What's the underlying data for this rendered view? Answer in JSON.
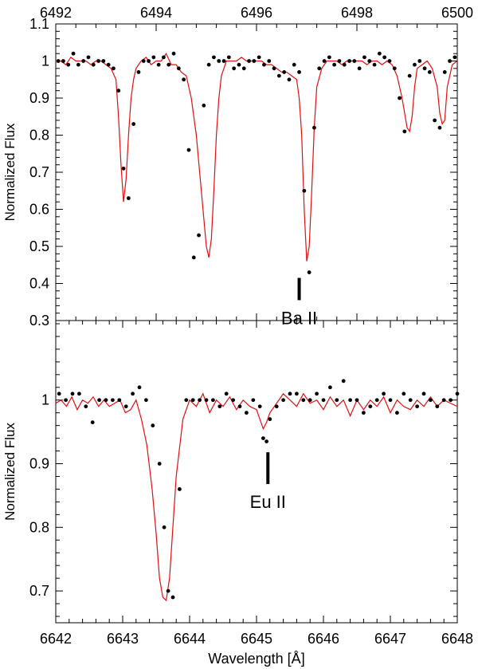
{
  "chart_data": [
    {
      "type": "scatter",
      "panel": "top",
      "xlabel": "",
      "ylabel": "Normalized Flux",
      "xlim": [
        6492,
        6500
      ],
      "ylim": [
        0.3,
        1.1
      ],
      "x_ticks": [
        6492,
        6494,
        6496,
        6498,
        6500
      ],
      "y_ticks": [
        0.3,
        0.4,
        0.5,
        0.6,
        0.7,
        0.8,
        0.9,
        1,
        1.1
      ],
      "x_tick_position": "top",
      "annotations": [
        {
          "text": "Ba II",
          "x": 6496.85,
          "tick_from": 0.355,
          "tick_to": 0.415
        }
      ],
      "series": [
        {
          "kind": "points",
          "color": "#000000",
          "x": [
            6492.05,
            6492.15,
            6492.25,
            6492.35,
            6492.45,
            6492.55,
            6492.65,
            6492.75,
            6492.85,
            6492.95,
            6493.05,
            6493.15,
            6493.25,
            6493.35,
            6493.45,
            6493.55,
            6493.65,
            6493.75,
            6493.85,
            6493.95,
            6494.05,
            6494.15,
            6494.25,
            6494.35,
            6494.45,
            6494.55,
            6494.65,
            6494.75,
            6494.85,
            6494.95,
            6495.05,
            6495.15,
            6495.25,
            6495.35,
            6495.45,
            6495.55,
            6495.65,
            6495.75,
            6495.85,
            6495.95,
            6496.05,
            6496.15,
            6496.25,
            6496.35,
            6496.45,
            6496.55,
            6496.65,
            6496.75,
            6496.85,
            6496.95,
            6497.05,
            6497.15,
            6497.25,
            6497.35,
            6497.45,
            6497.55,
            6497.65,
            6497.75,
            6497.85,
            6497.95,
            6498.05,
            6498.15,
            6498.25,
            6498.35,
            6498.45,
            6498.55,
            6498.65,
            6498.75,
            6498.85,
            6498.95,
            6499.05,
            6499.15,
            6499.25,
            6499.35,
            6499.45,
            6499.55,
            6499.65,
            6499.75,
            6499.85,
            6499.95
          ],
          "y": [
            1.0,
            1.0,
            0.99,
            1.02,
            0.99,
            1.0,
            1.01,
            0.99,
            1.0,
            1.0,
            0.99,
            0.98,
            0.92,
            0.71,
            0.63,
            0.83,
            0.97,
            1.0,
            1.0,
            1.01,
            0.99,
            1.01,
            0.99,
            1.02,
            0.98,
            0.95,
            0.76,
            0.47,
            0.53,
            0.88,
            0.99,
            1.01,
            1.0,
            1.0,
            1.01,
            0.98,
            0.99,
            0.98,
            1.0,
            1.0,
            1.01,
            0.99,
            1.0,
            0.98,
            0.96,
            0.97,
            0.95,
            0.99,
            0.97,
            0.65,
            0.43,
            0.82,
            0.98,
            1.0,
            1.01,
            0.99,
            1.0,
            0.99,
            1.0,
            1.0,
            0.98,
            1.01,
            1.0,
            0.99,
            1.02,
            1.01,
            1.0,
            0.98,
            0.9,
            0.81,
            0.96,
            0.99,
            1.0,
            0.98,
            0.97,
            0.84,
            0.82,
            0.97,
            1.0,
            1.01
          ]
        },
        {
          "kind": "line",
          "color": "#e01010",
          "x": [
            6492.0,
            6492.1,
            6492.2,
            6492.3,
            6492.4,
            6492.5,
            6492.6,
            6492.7,
            6492.8,
            6492.9,
            6493.0,
            6493.1,
            6493.2,
            6493.25,
            6493.3,
            6493.35,
            6493.4,
            6493.45,
            6493.5,
            6493.55,
            6493.6,
            6493.7,
            6493.8,
            6493.9,
            6494.0,
            6494.1,
            6494.2,
            6494.3,
            6494.4,
            6494.5,
            6494.6,
            6494.7,
            6494.8,
            6494.9,
            6495.0,
            6495.05,
            6495.1,
            6495.15,
            6495.2,
            6495.25,
            6495.3,
            6495.35,
            6495.4,
            6495.5,
            6495.6,
            6495.7,
            6495.8,
            6495.9,
            6496.0,
            6496.1,
            6496.2,
            6496.3,
            6496.4,
            6496.5,
            6496.6,
            6496.7,
            6496.8,
            6496.85,
            6496.9,
            6496.95,
            6497.0,
            6497.05,
            6497.1,
            6497.15,
            6497.2,
            6497.3,
            6497.4,
            6497.5,
            6497.6,
            6497.7,
            6497.8,
            6497.9,
            6498.0,
            6498.1,
            6498.2,
            6498.3,
            6498.4,
            6498.5,
            6498.6,
            6498.7,
            6498.8,
            6498.9,
            6499.0,
            6499.05,
            6499.1,
            6499.15,
            6499.2,
            6499.3,
            6499.4,
            6499.5,
            6499.6,
            6499.65,
            6499.7,
            6499.75,
            6499.8,
            6499.9,
            6500.0
          ],
          "y": [
            1.0,
            1.0,
            0.99,
            1.01,
            1.0,
            1.0,
            1.0,
            0.99,
            1.0,
            1.0,
            0.99,
            0.98,
            0.95,
            0.85,
            0.72,
            0.62,
            0.68,
            0.8,
            0.9,
            0.95,
            0.98,
            1.0,
            1.01,
            0.99,
            1.0,
            1.0,
            1.02,
            0.99,
            0.99,
            0.97,
            0.96,
            0.9,
            0.8,
            0.65,
            0.5,
            0.47,
            0.52,
            0.65,
            0.8,
            0.9,
            0.96,
            0.98,
            1.0,
            1.0,
            1.0,
            1.01,
            1.0,
            1.0,
            1.0,
            1.0,
            0.99,
            0.99,
            0.98,
            0.97,
            0.97,
            0.96,
            0.95,
            0.9,
            0.8,
            0.6,
            0.46,
            0.5,
            0.65,
            0.82,
            0.93,
            0.98,
            1.0,
            1.0,
            1.0,
            0.99,
            1.0,
            1.0,
            1.0,
            1.0,
            0.99,
            1.0,
            1.0,
            0.99,
            1.0,
            0.99,
            0.96,
            0.9,
            0.82,
            0.81,
            0.85,
            0.93,
            0.98,
            0.99,
            1.0,
            0.98,
            0.93,
            0.86,
            0.83,
            0.84,
            0.93,
            0.99,
            1.0
          ]
        }
      ]
    },
    {
      "type": "scatter",
      "panel": "bottom",
      "xlabel": "Wavelength [Å]",
      "ylabel": "Normalized Flux",
      "xlim": [
        6642,
        6648
      ],
      "ylim": [
        0.65,
        1.125
      ],
      "x_ticks": [
        6642,
        6643,
        6644,
        6645,
        6646,
        6647,
        6648
      ],
      "y_ticks": [
        0.7,
        0.8,
        0.9,
        1
      ],
      "annotations": [
        {
          "text": "Eu II",
          "x": 6645.17,
          "tick_from": 0.868,
          "tick_to": 0.918
        }
      ],
      "series": [
        {
          "kind": "points",
          "color": "#000000",
          "x": [
            6642.05,
            6642.15,
            6642.25,
            6642.35,
            6642.45,
            6642.55,
            6642.65,
            6642.75,
            6642.85,
            6642.95,
            6643.05,
            6643.15,
            6643.25,
            6643.35,
            6643.45,
            6643.55,
            6643.62,
            6643.68,
            6643.75,
            6643.85,
            6643.95,
            6644.05,
            6644.15,
            6644.25,
            6644.35,
            6644.45,
            6644.55,
            6644.65,
            6644.75,
            6644.85,
            6644.95,
            6645.05,
            6645.1,
            6645.15,
            6645.2,
            6645.3,
            6645.4,
            6645.5,
            6645.6,
            6645.7,
            6645.8,
            6645.9,
            6646.0,
            6646.1,
            6646.2,
            6646.3,
            6646.4,
            6646.5,
            6646.6,
            6646.7,
            6646.8,
            6646.9,
            6647.0,
            6647.1,
            6647.2,
            6647.3,
            6647.4,
            6647.5,
            6647.6,
            6647.7,
            6647.8,
            6647.9,
            6648.0
          ],
          "y": [
            1.01,
            1.0,
            1.01,
            1.01,
            0.99,
            0.965,
            1.0,
            1.0,
            1.0,
            1.0,
            0.99,
            1.01,
            1.02,
            1.0,
            0.96,
            0.9,
            0.8,
            0.7,
            0.69,
            0.86,
            1.0,
            1.0,
            1.0,
            1.0,
            1.0,
            0.99,
            1.01,
            1.0,
            0.99,
            0.98,
            1.0,
            0.99,
            0.94,
            0.935,
            0.97,
            0.99,
            1.0,
            1.01,
            1.01,
            1.0,
            1.0,
            1.01,
            1.0,
            1.02,
            1.0,
            1.03,
            1.0,
            1.0,
            0.98,
            0.99,
            1.0,
            1.01,
            1.0,
            0.98,
            1.01,
            1.0,
            0.99,
            1.01,
            1.0,
            0.99,
            1.0,
            1.0,
            1.01
          ]
        },
        {
          "kind": "line",
          "color": "#e01010",
          "x": [
            6642.0,
            6642.08,
            6642.16,
            6642.24,
            6642.32,
            6642.4,
            6642.48,
            6642.56,
            6642.64,
            6642.72,
            6642.8,
            6642.88,
            6642.96,
            6643.04,
            6643.12,
            6643.2,
            6643.28,
            6643.36,
            6643.44,
            6643.5,
            6643.55,
            6643.6,
            6643.65,
            6643.7,
            6643.75,
            6643.8,
            6643.9,
            6644.0,
            6644.1,
            6644.2,
            6644.3,
            6644.4,
            6644.5,
            6644.6,
            6644.7,
            6644.8,
            6644.9,
            6645.0,
            6645.05,
            6645.1,
            6645.15,
            6645.2,
            6645.3,
            6645.4,
            6645.5,
            6645.6,
            6645.7,
            6645.8,
            6645.9,
            6646.0,
            6646.1,
            6646.2,
            6646.3,
            6646.4,
            6646.5,
            6646.6,
            6646.7,
            6646.8,
            6646.9,
            6647.0,
            6647.1,
            6647.2,
            6647.3,
            6647.4,
            6647.5,
            6647.6,
            6647.7,
            6647.8,
            6647.9,
            6648.0
          ],
          "y": [
            0.995,
            1.0,
            0.99,
            1.005,
            0.985,
            1.0,
            0.995,
            1.005,
            0.99,
            1.0,
            0.99,
            0.995,
            1.0,
            0.98,
            0.985,
            1.0,
            0.97,
            0.93,
            0.86,
            0.79,
            0.72,
            0.69,
            0.685,
            0.72,
            0.8,
            0.88,
            0.97,
            1.0,
            0.99,
            1.01,
            0.98,
            1.0,
            0.99,
            1.005,
            0.985,
            1.0,
            0.99,
            0.985,
            0.97,
            0.955,
            0.965,
            0.98,
            0.995,
            1.01,
            1.0,
            0.99,
            1.01,
            0.995,
            1.0,
            0.985,
            1.005,
            0.99,
            1.0,
            0.975,
            1.0,
            0.985,
            1.0,
            0.99,
            1.005,
            0.98,
            1.0,
            0.99,
            0.985,
            1.0,
            0.99,
            1.005,
            0.99,
            1.0,
            0.995,
            0.99
          ]
        }
      ]
    }
  ]
}
